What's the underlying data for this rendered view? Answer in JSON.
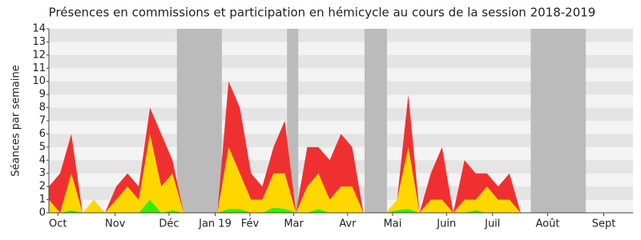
{
  "chart_data": {
    "type": "stacked_area",
    "title": "Présences en commissions et participation en hémicycle au cours de la session 2018-2019",
    "y_label": "Séances par semaine",
    "x": [
      0,
      1,
      2,
      3,
      4,
      5,
      6,
      7,
      8,
      9,
      10,
      11,
      12,
      13,
      14,
      15,
      16,
      17,
      18,
      19,
      20,
      21,
      22,
      23,
      24,
      25,
      26,
      27,
      28,
      29,
      30,
      31,
      32,
      33,
      34,
      35,
      36,
      37,
      38,
      39,
      40,
      41,
      42
    ],
    "series": [
      {
        "color": "#33ee00",
        "values": [
          0,
          0,
          0.2,
          0,
          0,
          0,
          0,
          0,
          0,
          1,
          0,
          0.2,
          0,
          0,
          0,
          0,
          0.3,
          0.3,
          0,
          0,
          0.4,
          0.3,
          0,
          0,
          0.3,
          0,
          0,
          0,
          0,
          0,
          0,
          0.2,
          0.3,
          0,
          0,
          0,
          0,
          0,
          0.2,
          0,
          0,
          0,
          0
        ]
      },
      {
        "color": "#ffd700",
        "values": [
          1,
          0,
          2.8,
          0,
          1,
          0,
          1,
          2,
          1,
          5,
          2,
          2.8,
          0,
          0,
          0,
          0,
          4.7,
          2.7,
          1,
          1,
          2.6,
          2.7,
          0,
          2,
          2.7,
          1,
          2,
          2,
          0,
          0,
          0,
          0.8,
          4.7,
          0,
          1,
          1,
          0,
          1,
          0.8,
          2,
          1,
          1,
          0
        ]
      },
      {
        "color": "#f03030",
        "values": [
          1,
          3,
          3,
          0,
          0,
          0,
          1,
          1,
          1,
          2,
          4,
          1,
          0,
          0,
          0,
          0,
          5,
          5,
          2,
          1,
          2,
          4,
          0,
          3,
          2,
          3,
          4,
          3,
          0,
          0,
          0,
          0,
          4,
          0,
          2,
          4,
          0,
          3,
          2,
          1,
          1,
          2,
          0
        ]
      }
    ],
    "shaded_ranges": [
      [
        11.4,
        15.4
      ],
      [
        21.2,
        22.2
      ],
      [
        28.1,
        30.1
      ],
      [
        42.9,
        47.8
      ]
    ],
    "shade_color": "#bbbbbb",
    "xlim": [
      0,
      52
    ],
    "xticks": [
      {
        "value": 0.8,
        "label": "Oct"
      },
      {
        "value": 5.9,
        "label": "Nov"
      },
      {
        "value": 10.7,
        "label": "Déc"
      },
      {
        "value": 14.8,
        "label": "Jan 19"
      },
      {
        "value": 17.9,
        "label": "Fév"
      },
      {
        "value": 21.8,
        "label": "Mar"
      },
      {
        "value": 26.6,
        "label": "Avr"
      },
      {
        "value": 30.6,
        "label": "Mai"
      },
      {
        "value": 35.4,
        "label": "Juin"
      },
      {
        "value": 39.5,
        "label": "Juil"
      },
      {
        "value": 44.4,
        "label": "Août"
      },
      {
        "value": 49.4,
        "label": "Sept"
      }
    ],
    "ylim": [
      0,
      14
    ],
    "yticks": [
      0,
      1,
      2,
      3,
      4,
      5,
      6,
      7,
      8,
      9,
      10,
      11,
      12,
      13,
      14
    ],
    "grid": true
  }
}
